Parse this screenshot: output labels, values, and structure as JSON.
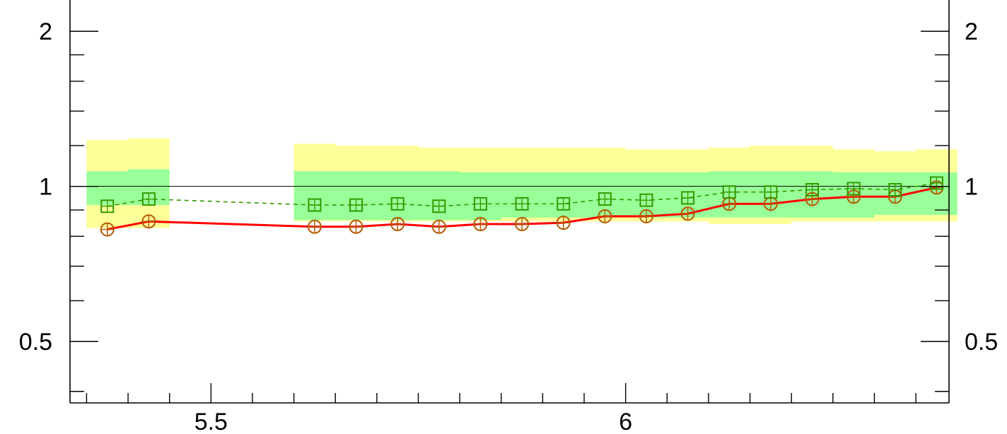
{
  "chart_data": {
    "type": "line",
    "title": "",
    "xlabel": "",
    "ylabel": "",
    "xlim": [
      5.33,
      6.39
    ],
    "ylim": [
      0.38,
      2.3
    ],
    "yscale": "log",
    "grid": false,
    "reference_line": 1,
    "x_ticks": [
      {
        "value": 5.5,
        "label": "5.5"
      },
      {
        "value": 6,
        "label": "6"
      }
    ],
    "y_ticks": [
      {
        "value": 0.5,
        "label": "0.5"
      },
      {
        "value": 1,
        "label": "1"
      },
      {
        "value": 2,
        "label": "2"
      }
    ],
    "bands": [
      {
        "x": [
          5.35,
          5.4,
          5.45
        ],
        "inner_low": [
          0.92,
          0.92
        ],
        "inner_high": [
          1.07,
          1.08
        ],
        "outer_low": [
          0.83,
          0.83
        ],
        "outer_high": [
          1.23,
          1.24
        ]
      },
      {
        "x": [
          5.6,
          5.65,
          5.7,
          5.75,
          5.8,
          5.85,
          5.9,
          5.95,
          6.0,
          6.05,
          6.1,
          6.15,
          6.2,
          6.25,
          6.3,
          6.35,
          6.4
        ],
        "inner_low": [
          0.86,
          0.86,
          0.86,
          0.86,
          0.86,
          0.87,
          0.87,
          0.87,
          0.87,
          0.87,
          0.87,
          0.87,
          0.87,
          0.87,
          0.88,
          0.88
        ],
        "inner_high": [
          1.07,
          1.07,
          1.07,
          1.07,
          1.065,
          1.065,
          1.065,
          1.065,
          1.065,
          1.065,
          1.07,
          1.07,
          1.07,
          1.065,
          1.065,
          1.065
        ],
        "outer_low": [
          0.855,
          0.855,
          0.855,
          0.855,
          0.855,
          0.855,
          0.855,
          0.855,
          0.855,
          0.855,
          0.845,
          0.845,
          0.855,
          0.855,
          0.855,
          0.855
        ],
        "outer_high": [
          1.21,
          1.2,
          1.2,
          1.19,
          1.19,
          1.19,
          1.19,
          1.19,
          1.18,
          1.18,
          1.19,
          1.2,
          1.2,
          1.18,
          1.17,
          1.18
        ]
      }
    ],
    "series": [
      {
        "style": "red-solid-circles",
        "x": [
          5.375,
          5.425,
          5.625,
          5.675,
          5.725,
          5.775,
          5.825,
          5.875,
          5.925,
          5.975,
          6.025,
          6.075,
          6.125,
          6.175,
          6.225,
          6.275,
          6.325,
          6.375
        ],
        "values": [
          0.825,
          0.855,
          0.835,
          0.835,
          0.845,
          0.835,
          0.845,
          0.845,
          0.85,
          0.875,
          0.875,
          0.885,
          0.925,
          0.925,
          0.945,
          0.955,
          0.955,
          0.995
        ]
      },
      {
        "style": "green-dashed-squares",
        "x": [
          5.375,
          5.425,
          5.625,
          5.675,
          5.725,
          5.775,
          5.825,
          5.875,
          5.925,
          5.975,
          6.025,
          6.075,
          6.125,
          6.175,
          6.225,
          6.275,
          6.325,
          6.375
        ],
        "values": [
          0.915,
          0.945,
          0.92,
          0.92,
          0.925,
          0.915,
          0.925,
          0.925,
          0.925,
          0.945,
          0.94,
          0.95,
          0.975,
          0.975,
          0.985,
          0.99,
          0.985,
          1.015
        ]
      }
    ],
    "colors": {
      "outer_band": "#ffff99",
      "inner_band": "#99ff99",
      "red_line": "#ff0000",
      "circle_marker": "#b35900",
      "green_line": "#339900",
      "axis": "#000000"
    }
  }
}
